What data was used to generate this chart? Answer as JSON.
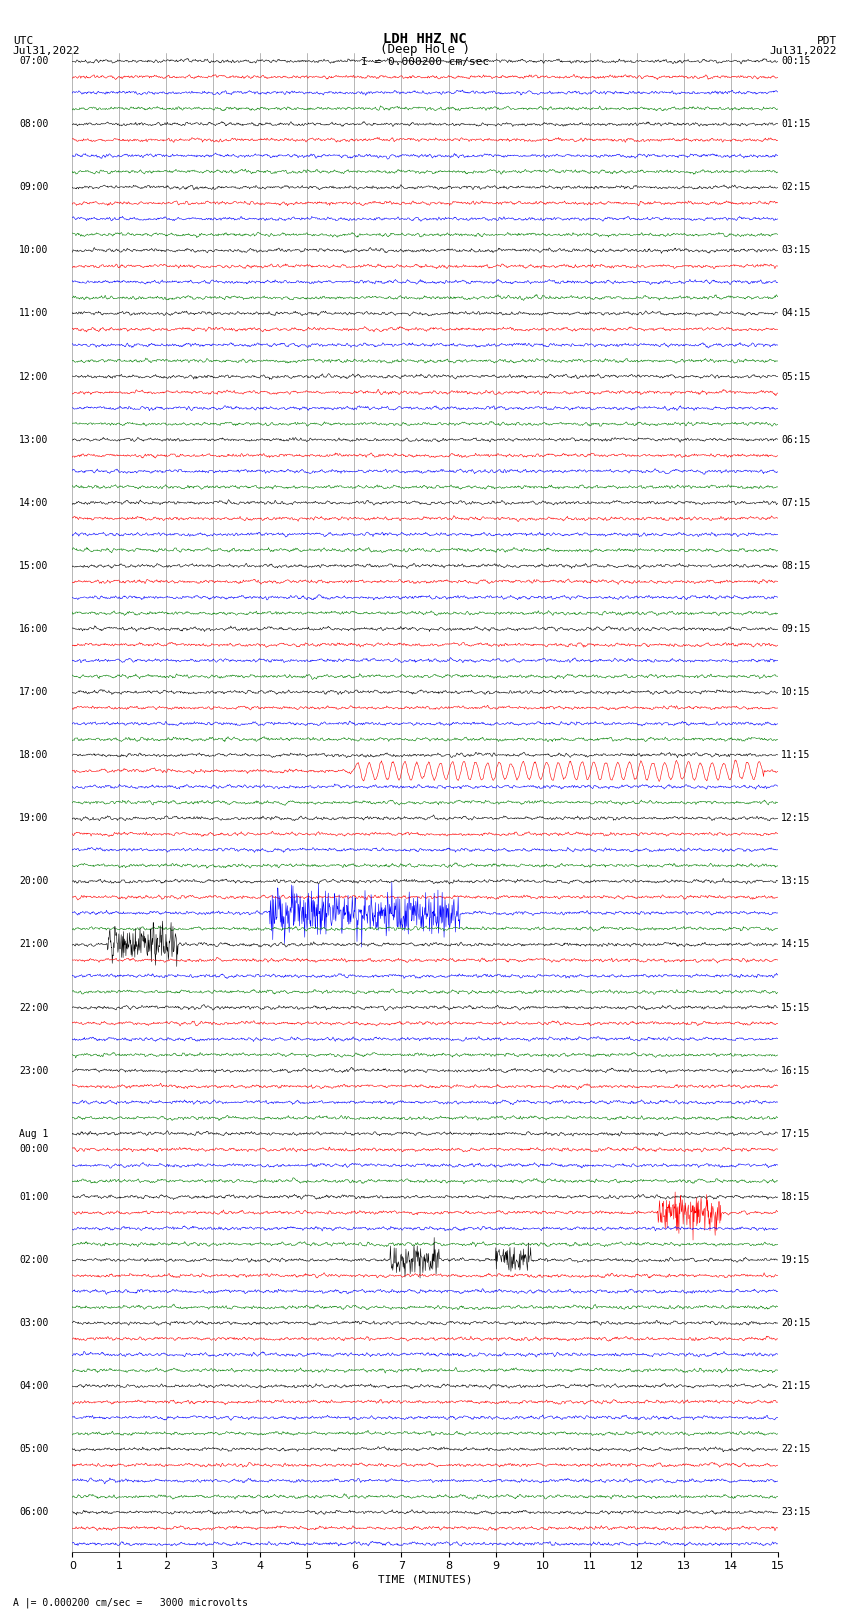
{
  "title_line1": "LDH HHZ NC",
  "title_line2": "(Deep Hole )",
  "scale_text": "I = 0.000200 cm/sec",
  "bottom_text": "A |= 0.000200 cm/sec =   3000 microvolts",
  "xlabel": "TIME (MINUTES)",
  "utc_label": "UTC",
  "utc_date": "Jul31,2022",
  "pdt_label": "PDT",
  "pdt_date": "Jul31,2022",
  "left_times": [
    "07:00",
    "",
    "",
    "",
    "08:00",
    "",
    "",
    "",
    "09:00",
    "",
    "",
    "",
    "10:00",
    "",
    "",
    "",
    "11:00",
    "",
    "",
    "",
    "12:00",
    "",
    "",
    "",
    "13:00",
    "",
    "",
    "",
    "14:00",
    "",
    "",
    "",
    "15:00",
    "",
    "",
    "",
    "16:00",
    "",
    "",
    "",
    "17:00",
    "",
    "",
    "",
    "18:00",
    "",
    "",
    "",
    "19:00",
    "",
    "",
    "",
    "20:00",
    "",
    "",
    "",
    "21:00",
    "",
    "",
    "",
    "22:00",
    "",
    "",
    "",
    "23:00",
    "",
    "",
    "",
    "Aug 1",
    "00:00",
    "",
    "",
    "01:00",
    "",
    "",
    "",
    "02:00",
    "",
    "",
    "",
    "03:00",
    "",
    "",
    "",
    "04:00",
    "",
    "",
    "",
    "05:00",
    "",
    "",
    "",
    "06:00",
    "",
    ""
  ],
  "right_times": [
    "00:15",
    "",
    "",
    "",
    "01:15",
    "",
    "",
    "",
    "02:15",
    "",
    "",
    "",
    "03:15",
    "",
    "",
    "",
    "04:15",
    "",
    "",
    "",
    "05:15",
    "",
    "",
    "",
    "06:15",
    "",
    "",
    "",
    "07:15",
    "",
    "",
    "",
    "08:15",
    "",
    "",
    "",
    "09:15",
    "",
    "",
    "",
    "10:15",
    "",
    "",
    "",
    "11:15",
    "",
    "",
    "",
    "12:15",
    "",
    "",
    "",
    "13:15",
    "",
    "",
    "",
    "14:15",
    "",
    "",
    "",
    "15:15",
    "",
    "",
    "",
    "16:15",
    "",
    "",
    "",
    "17:15",
    "",
    "",
    "",
    "18:15",
    "",
    "",
    "",
    "19:15",
    "",
    "",
    "",
    "20:15",
    "",
    "",
    "",
    "21:15",
    "",
    "",
    "",
    "22:15",
    "",
    "",
    "",
    "23:15",
    "",
    ""
  ],
  "n_rows": 95,
  "n_minutes": 15,
  "colors": [
    "black",
    "red",
    "blue",
    "green"
  ],
  "bg_color": "white",
  "figsize": [
    8.5,
    16.13
  ],
  "dpi": 100
}
